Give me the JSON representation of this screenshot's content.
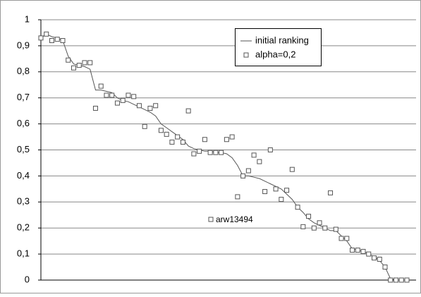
{
  "chart_data": {
    "type": "line",
    "series": [
      {
        "name": "initial ranking",
        "type": "line",
        "color": "#555555",
        "values": [
          0.93,
          0.945,
          0.935,
          0.93,
          0.92,
          0.86,
          0.83,
          0.825,
          0.82,
          0.81,
          0.73,
          0.73,
          0.725,
          0.72,
          0.7,
          0.69,
          0.685,
          0.675,
          0.665,
          0.655,
          0.645,
          0.63,
          0.6,
          0.585,
          0.57,
          0.555,
          0.54,
          0.515,
          0.505,
          0.5,
          0.495,
          0.495,
          0.49,
          0.49,
          0.485,
          0.47,
          0.44,
          0.4,
          0.4,
          0.395,
          0.39,
          0.38,
          0.37,
          0.36,
          0.35,
          0.33,
          0.31,
          0.28,
          0.26,
          0.235,
          0.22,
          0.21,
          0.2,
          0.19,
          0.19,
          0.17,
          0.15,
          0.12,
          0.115,
          0.11,
          0.1,
          0.09,
          0.075,
          0.05,
          0.005,
          0,
          0,
          0
        ]
      },
      {
        "name": "alpha=0,2",
        "type": "scatter",
        "color": "#555555",
        "values": [
          0.93,
          0.945,
          0.92,
          0.925,
          0.92,
          0.845,
          0.815,
          0.825,
          0.835,
          0.835,
          0.66,
          0.745,
          0.71,
          0.71,
          0.68,
          0.69,
          0.71,
          0.705,
          0.67,
          0.59,
          0.66,
          0.67,
          0.575,
          0.56,
          0.53,
          0.55,
          0.53,
          0.65,
          0.485,
          0.495,
          0.54,
          0.49,
          0.49,
          0.49,
          0.54,
          0.55,
          0.32,
          0.4,
          0.42,
          0.48,
          0.455,
          0.34,
          0.5,
          0.35,
          0.31,
          0.345,
          0.425,
          0.28,
          0.205,
          0.245,
          0.2,
          0.22,
          0.2,
          0.335,
          0.195,
          0.16,
          0.16,
          0.115,
          0.115,
          0.11,
          0.1,
          0.085,
          0.08,
          0.05,
          0,
          0,
          0,
          0
        ]
      }
    ],
    "annotation": "arw13494",
    "ylim": [
      0,
      1
    ],
    "yticks": [
      0,
      {
        "value": 0.1,
        "label": "0,1"
      },
      {
        "value": 0.2,
        "label": "0,2"
      },
      {
        "value": 0.3,
        "label": "0,3"
      },
      {
        "value": 0.4,
        "label": "0,4"
      },
      {
        "value": 0.5,
        "label": "0,5"
      },
      {
        "value": 0.6,
        "label": "0,6"
      },
      {
        "value": 0.7,
        "label": "0,7"
      },
      {
        "value": 0.8,
        "label": "0,8"
      },
      {
        "value": 0.9,
        "label": "0,9"
      },
      1
    ],
    "grid": true,
    "legend": "top-right"
  }
}
